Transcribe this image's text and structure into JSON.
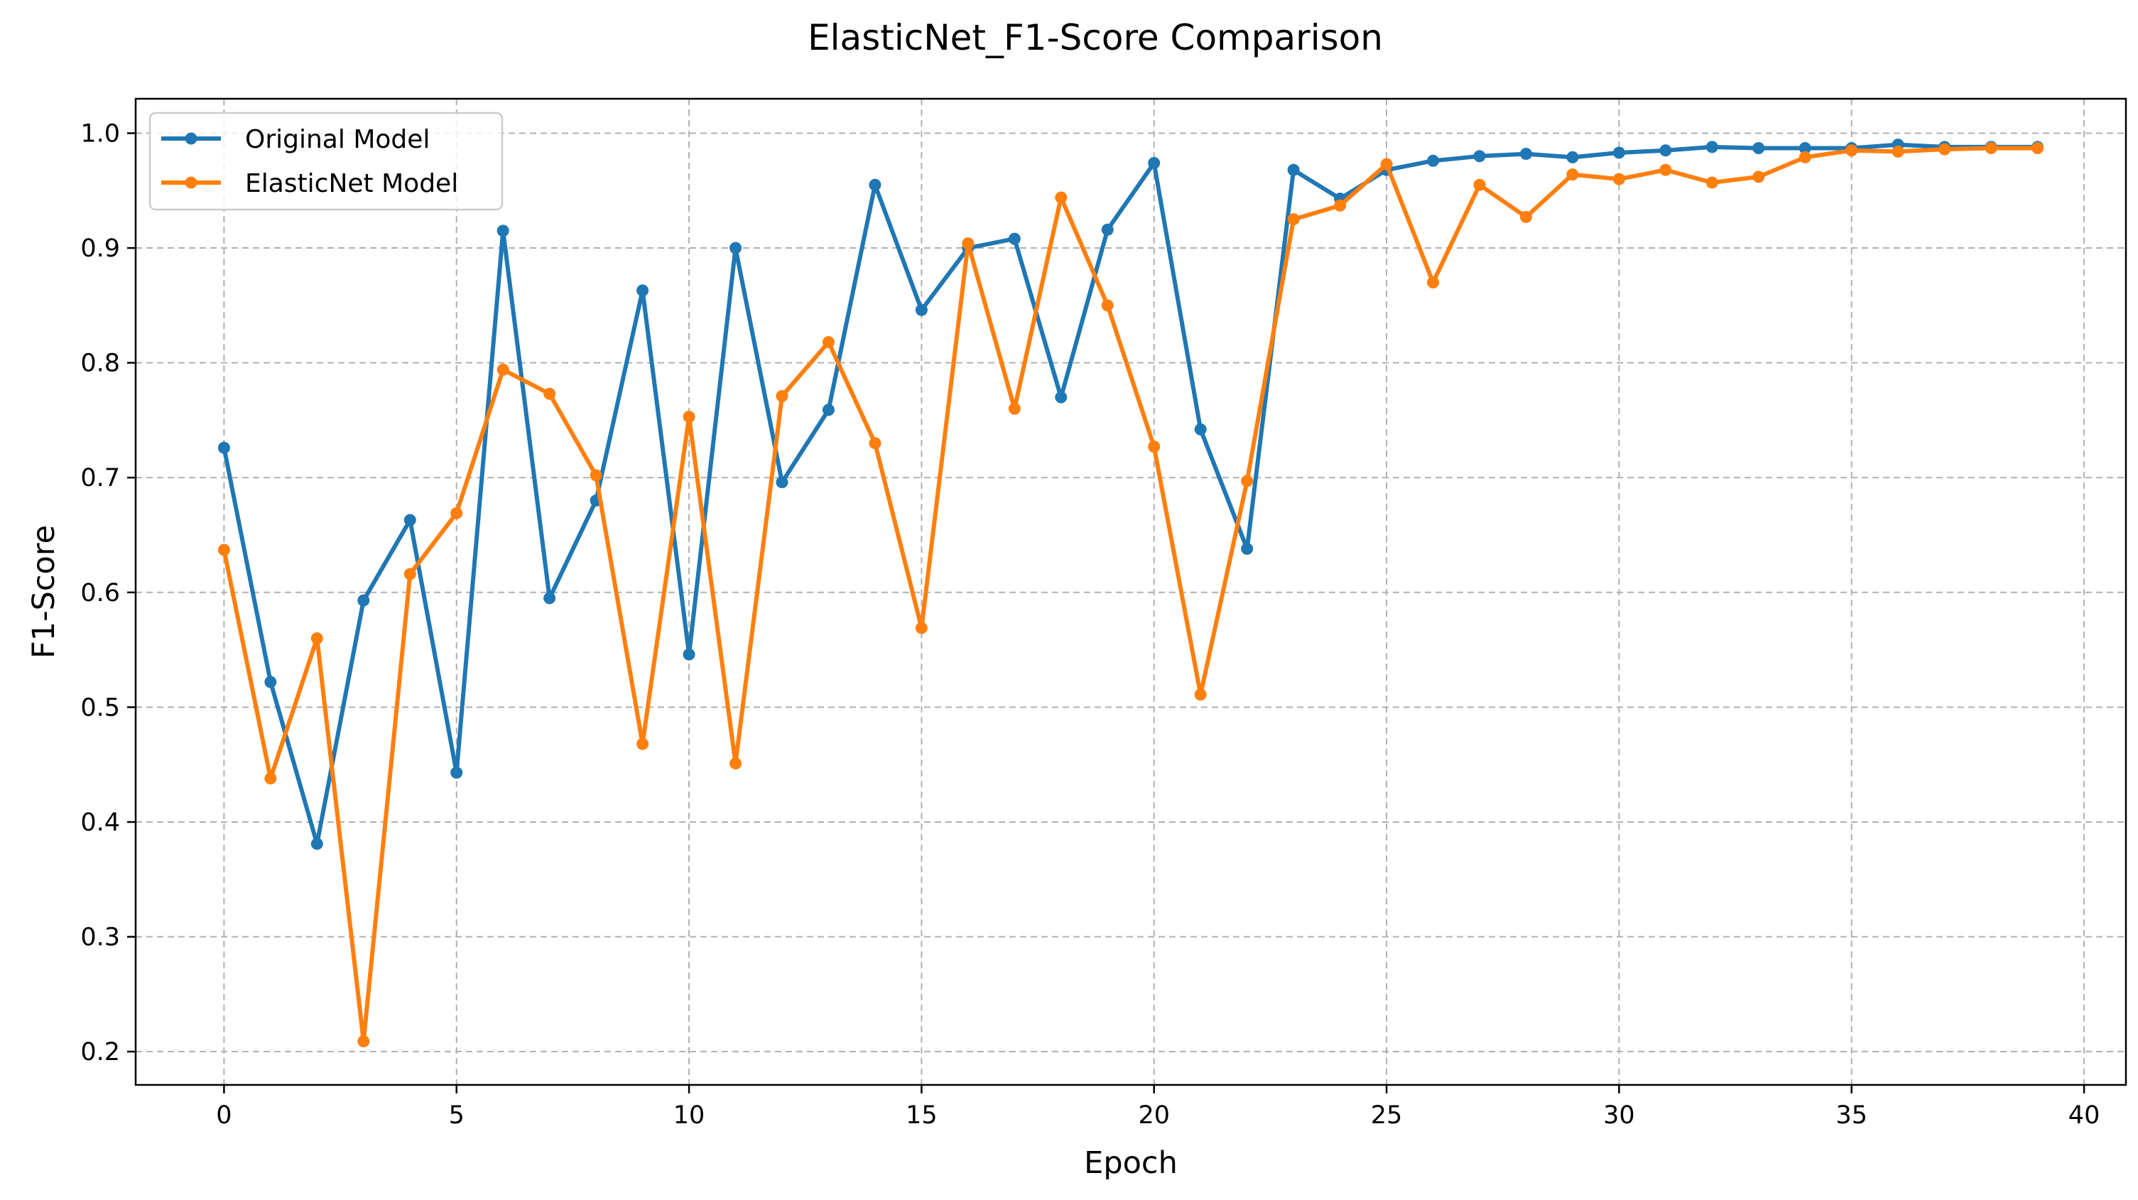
{
  "chart_data": {
    "type": "line",
    "title": "ElasticNet_F1-Score Comparison",
    "xlabel": "Epoch",
    "ylabel": "F1-Score",
    "xlim": [
      -1.9,
      40.9
    ],
    "ylim": [
      0.171,
      1.03
    ],
    "xticks": [
      0,
      5,
      10,
      15,
      20,
      25,
      30,
      35,
      40
    ],
    "yticks": [
      0.2,
      0.3,
      0.4,
      0.5,
      0.6,
      0.7,
      0.8,
      0.9,
      1.0
    ],
    "ytick_labels": [
      "0.2",
      "0.3",
      "0.4",
      "0.5",
      "0.6",
      "0.7",
      "0.8",
      "0.9",
      "1.0"
    ],
    "grid": true,
    "legend_position": "top-left",
    "x": [
      0,
      1,
      2,
      3,
      4,
      5,
      6,
      7,
      8,
      9,
      10,
      11,
      12,
      13,
      14,
      15,
      16,
      17,
      18,
      19,
      20,
      21,
      22,
      23,
      24,
      25,
      26,
      27,
      28,
      29,
      30,
      31,
      32,
      33,
      34,
      35,
      36,
      37,
      38,
      39
    ],
    "series": [
      {
        "name": "Original Model",
        "color": "#1f77b4",
        "values": [
          0.726,
          0.522,
          0.381,
          0.593,
          0.663,
          0.443,
          0.915,
          0.595,
          0.68,
          0.863,
          0.546,
          0.9,
          0.696,
          0.759,
          0.955,
          0.846,
          0.9,
          0.908,
          0.77,
          0.916,
          0.974,
          0.742,
          0.638,
          0.968,
          0.943,
          0.968,
          0.976,
          0.98,
          0.982,
          0.979,
          0.983,
          0.985,
          0.988,
          0.987,
          0.987,
          0.987,
          0.99,
          0.988,
          0.988,
          0.988
        ]
      },
      {
        "name": "ElasticNet Model",
        "color": "#ff7f0e",
        "values": [
          0.637,
          0.438,
          0.56,
          0.209,
          0.616,
          0.669,
          0.794,
          0.773,
          0.702,
          0.468,
          0.753,
          0.451,
          0.771,
          0.818,
          0.73,
          0.569,
          0.904,
          0.76,
          0.944,
          0.85,
          0.727,
          0.511,
          0.697,
          0.925,
          0.937,
          0.973,
          0.87,
          0.955,
          0.927,
          0.964,
          0.96,
          0.968,
          0.957,
          0.962,
          0.979,
          0.985,
          0.984,
          0.986,
          0.987,
          0.987
        ]
      }
    ]
  }
}
